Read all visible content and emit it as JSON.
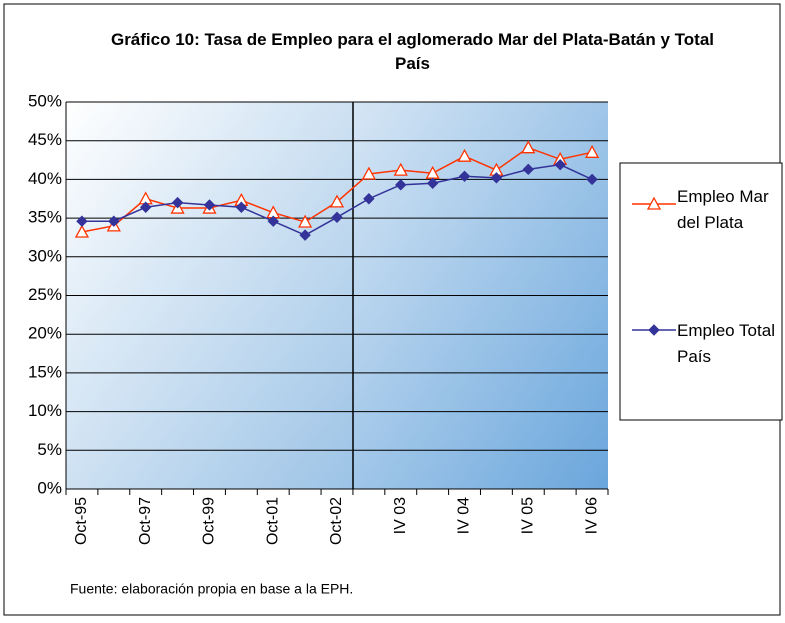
{
  "chart_data": {
    "type": "line",
    "title": "Gráfico 10: Tasa de Empleo para el aglomerado Mar del Plata-Batán y Total País",
    "categories": [
      "Oct-95",
      null,
      "Oct-97",
      null,
      "Oct-99",
      null,
      "Oct-01",
      null,
      "Oct-02",
      null,
      "IV 03",
      null,
      "IV 04",
      null,
      "IV 05",
      null,
      "IV 06"
    ],
    "series": [
      {
        "name": "Empleo Mar del Plata",
        "color": "#ff3300",
        "marker": "triangle",
        "values": [
          33.2,
          34.0,
          37.5,
          36.3,
          36.3,
          37.3,
          35.7,
          34.5,
          37.1,
          40.7,
          41.2,
          40.8,
          43.0,
          41.2,
          44.1,
          42.6,
          43.5
        ]
      },
      {
        "name": "Empleo Total País",
        "color": "#333399",
        "marker": "diamond",
        "values": [
          34.6,
          34.6,
          36.4,
          37.0,
          36.7,
          36.4,
          34.6,
          32.8,
          35.1,
          37.5,
          39.3,
          39.5,
          40.4,
          40.2,
          41.3,
          41.9,
          40.0
        ]
      }
    ],
    "ylim": [
      0,
      50
    ],
    "yticks": [
      {
        "value": 0,
        "label": "0%"
      },
      {
        "value": 5,
        "label": "5%"
      },
      {
        "value": 10,
        "label": "10%"
      },
      {
        "value": 15,
        "label": "15%"
      },
      {
        "value": 20,
        "label": "20%"
      },
      {
        "value": 25,
        "label": "25%"
      },
      {
        "value": 30,
        "label": "30%"
      },
      {
        "value": 35,
        "label": "35%"
      },
      {
        "value": 40,
        "label": "40%"
      },
      {
        "value": 45,
        "label": "45%"
      },
      {
        "value": 50,
        "label": "50%"
      }
    ],
    "grid": true,
    "legend": "right",
    "source": "Fuente: elaboración propia en base a la EPH."
  }
}
